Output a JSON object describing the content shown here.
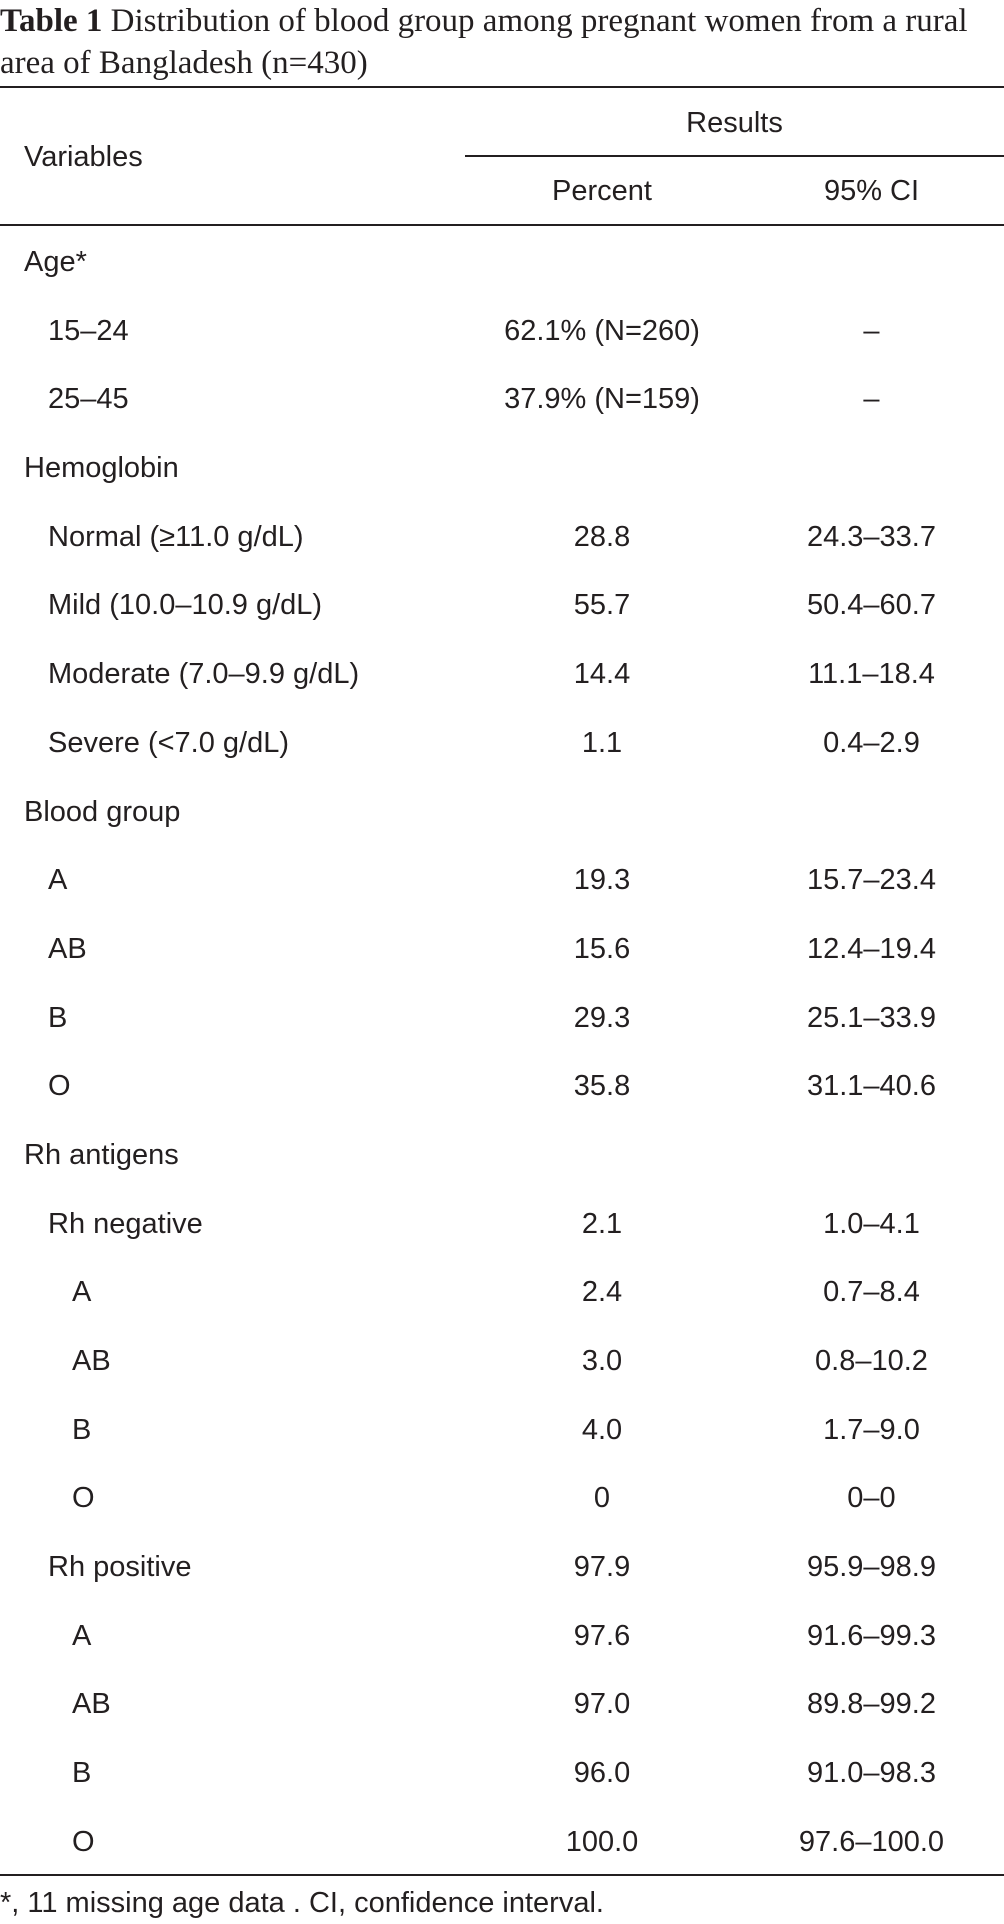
{
  "caption": {
    "label": "Table 1",
    "text": "Distribution of blood group among pregnant women from a rural area of Bangladesh (n=430)"
  },
  "header": {
    "variables": "Variables",
    "results": "Results",
    "percent": "Percent",
    "ci": "95% CI"
  },
  "rows": [
    {
      "level": 0,
      "variable": "Age*",
      "percent": "",
      "ci": ""
    },
    {
      "level": 1,
      "variable": "15–24",
      "percent": "62.1% (N=260)",
      "ci": "–"
    },
    {
      "level": 1,
      "variable": "25–45",
      "percent": "37.9% (N=159)",
      "ci": "–"
    },
    {
      "level": 0,
      "variable": "Hemoglobin",
      "percent": "",
      "ci": ""
    },
    {
      "level": 1,
      "variable": "Normal (≥11.0 g/dL)",
      "percent": "28.8",
      "ci": "24.3–33.7"
    },
    {
      "level": 1,
      "variable": "Mild (10.0–10.9 g/dL)",
      "percent": "55.7",
      "ci": "50.4–60.7"
    },
    {
      "level": 1,
      "variable": "Moderate (7.0–9.9 g/dL)",
      "percent": "14.4",
      "ci": "11.1–18.4"
    },
    {
      "level": 1,
      "variable": "Severe (<7.0 g/dL)",
      "percent": "1.1",
      "ci": "0.4–2.9"
    },
    {
      "level": 0,
      "variable": "Blood group",
      "percent": "",
      "ci": ""
    },
    {
      "level": 1,
      "variable": "A",
      "percent": "19.3",
      "ci": "15.7–23.4"
    },
    {
      "level": 1,
      "variable": "AB",
      "percent": "15.6",
      "ci": "12.4–19.4"
    },
    {
      "level": 1,
      "variable": "B",
      "percent": "29.3",
      "ci": "25.1–33.9"
    },
    {
      "level": 1,
      "variable": "O",
      "percent": "35.8",
      "ci": "31.1–40.6"
    },
    {
      "level": 0,
      "variable": "Rh antigens",
      "percent": "",
      "ci": ""
    },
    {
      "level": 1,
      "variable": "Rh negative",
      "percent": "2.1",
      "ci": "1.0–4.1"
    },
    {
      "level": 2,
      "variable": "A",
      "percent": "2.4",
      "ci": "0.7–8.4"
    },
    {
      "level": 2,
      "variable": "AB",
      "percent": "3.0",
      "ci": "0.8–10.2"
    },
    {
      "level": 2,
      "variable": "B",
      "percent": "4.0",
      "ci": "1.7–9.0"
    },
    {
      "level": 2,
      "variable": "O",
      "percent": "0",
      "ci": "0–0"
    },
    {
      "level": 1,
      "variable": "Rh positive",
      "percent": "97.9",
      "ci": "95.9–98.9"
    },
    {
      "level": 2,
      "variable": "A",
      "percent": "97.6",
      "ci": "91.6–99.3"
    },
    {
      "level": 2,
      "variable": "AB",
      "percent": "97.0",
      "ci": "89.8–99.2"
    },
    {
      "level": 2,
      "variable": "B",
      "percent": "96.0",
      "ci": "91.0–98.3"
    },
    {
      "level": 2,
      "variable": "O",
      "percent": "100.0",
      "ci": "97.6–100.0"
    }
  ],
  "footnote": "*, 11 missing age data . CI, confidence interval."
}
